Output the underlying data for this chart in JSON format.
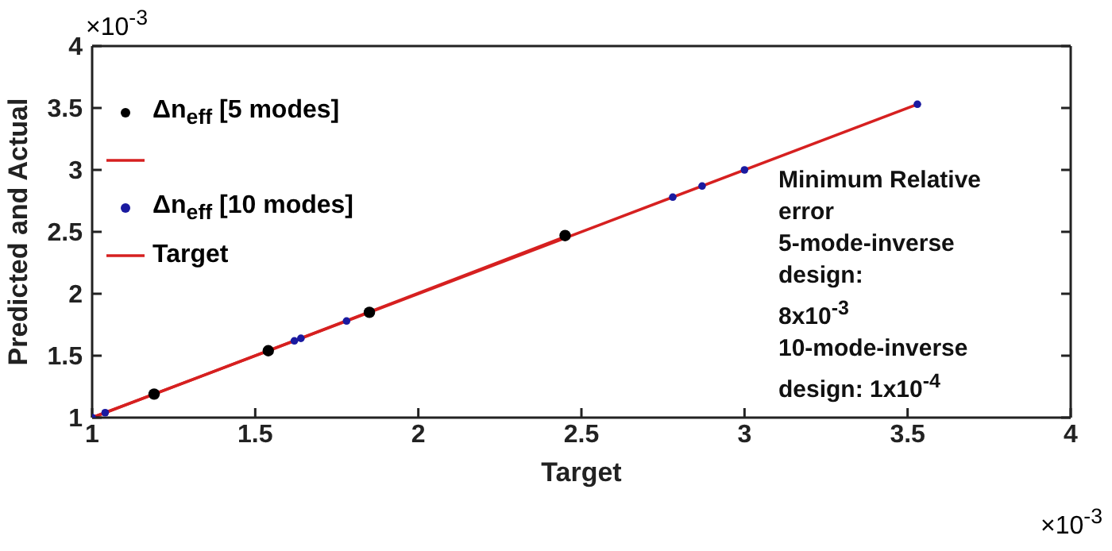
{
  "chart_data": {
    "type": "scatter",
    "xlabel": "Target",
    "ylabel": "Predicted and Actual",
    "xlim": [
      1,
      4
    ],
    "ylim": [
      1,
      4
    ],
    "xticks": [
      1,
      1.5,
      2,
      2.5,
      3,
      3.5,
      4
    ],
    "yticks": [
      1,
      1.5,
      2,
      2.5,
      3,
      3.5,
      4
    ],
    "legend": "top left",
    "grid": false,
    "series": [
      {
        "name": "Δn$_{eff}$ [5 modes]",
        "color": "#000000",
        "marker": "circle",
        "x": [
          1.19,
          1.54,
          1.85,
          2.45
        ],
        "values": [
          1.19,
          1.54,
          1.85,
          2.47
        ]
      },
      {
        "type": "line",
        "color": "#d62020",
        "x": [
          1,
          1.54,
          2.45
        ],
        "values": [
          1,
          1.54,
          2.46
        ]
      },
      {
        "name": "Δn$_{eff}$ [10 modes]",
        "color": "#1a1aa0",
        "marker": "circle",
        "x": [
          1.0,
          1.04,
          1.62,
          1.64,
          1.78,
          2.78,
          2.87,
          3.0,
          3.53
        ],
        "values": [
          1.0,
          1.04,
          1.62,
          1.64,
          1.78,
          2.78,
          2.87,
          3.0,
          3.53
        ]
      },
      {
        "name": "Target",
        "type": "line",
        "color": "#d62020",
        "x": [
          1,
          3.53
        ],
        "values": [
          1,
          3.53
        ]
      }
    ],
    "annotations": [
      "×10$^{-3}$",
      "×10$^{-3}$",
      "Minimum Relative\nerror\n5-mode-inverse\ndesign:\n8x10$^{-3}$\n10-mode-inverse\ndesign: 1x10$^{-4}$"
    ]
  }
}
